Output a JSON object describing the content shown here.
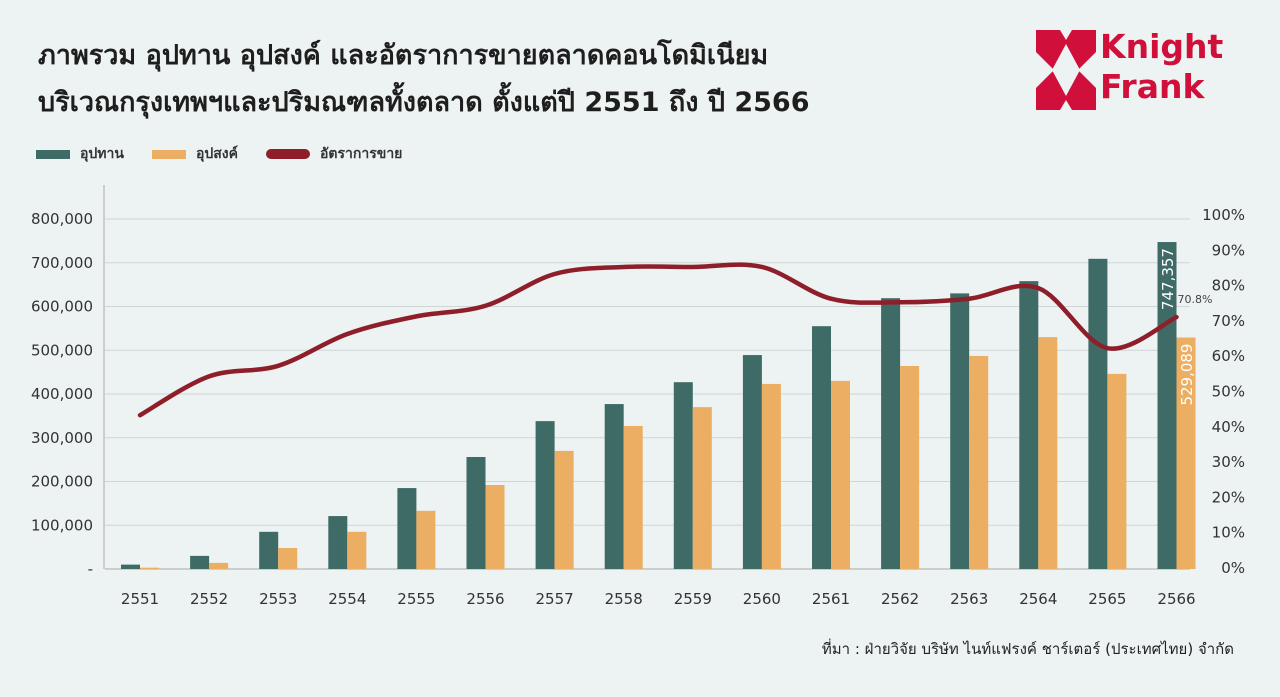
{
  "title_line1": "ภาพรวม อุปทาน อุปสงค์ และอัตราการขายตลาดคอนโดมิเนียม",
  "title_line2": "บริเวณกรุงเทพฯและปริมณฑลทั้งตลาด ตั้งแต่ปี 2551 ถึง ปี 2566",
  "logo": {
    "line1": "Knight",
    "line2": "Frank"
  },
  "source": "ที่มา : ฝ่ายวิจัย บริษัท ไนท์แฟรงค์ ชาร์เตอร์ (ประเทศไทย) จำกัด",
  "colors": {
    "supply": "#3f6b67",
    "demand": "#ecae62",
    "rate": "#8e1f2a",
    "brand": "#d0103a"
  },
  "chart_data": {
    "type": "bar+line",
    "categories": [
      "2551",
      "2552",
      "2553",
      "2554",
      "2555",
      "2556",
      "2557",
      "2558",
      "2559",
      "2560",
      "2561",
      "2562",
      "2563",
      "2564",
      "2565",
      "2566"
    ],
    "series": [
      {
        "name": "อุปทาน",
        "type": "bar",
        "axis": "left",
        "values": [
          10000,
          30000,
          85000,
          121000,
          185000,
          256000,
          338000,
          377000,
          427000,
          489000,
          555000,
          619000,
          630000,
          658000,
          709000,
          747357
        ]
      },
      {
        "name": "อุปสงค์",
        "type": "bar",
        "axis": "left",
        "values": [
          3000,
          14000,
          48000,
          85000,
          133000,
          192000,
          270000,
          327000,
          370000,
          423000,
          430000,
          464000,
          487000,
          530000,
          446000,
          529089
        ]
      },
      {
        "name": "อัตราการขาย",
        "type": "line",
        "axis": "right",
        "values": [
          43,
          54,
          57,
          66,
          71,
          74,
          83,
          85,
          85,
          85,
          76,
          75,
          76,
          79,
          62,
          70.8
        ]
      }
    ],
    "data_labels": {
      "supply_last": "747,357",
      "demand_last": "529,089",
      "rate_last": "70.8%"
    },
    "left_axis": {
      "ylim": [
        0,
        800000
      ],
      "ticks": [
        "-",
        "100,000",
        "200,000",
        "300,000",
        "400,000",
        "500,000",
        "600,000",
        "700,000",
        "800,000"
      ]
    },
    "right_axis": {
      "ylim": [
        0,
        100
      ],
      "ticks": [
        "0%",
        "10%",
        "20%",
        "30%",
        "40%",
        "50%",
        "60%",
        "70%",
        "80%",
        "90%",
        "100%"
      ]
    },
    "grid": true,
    "legend_position": "top-left"
  }
}
